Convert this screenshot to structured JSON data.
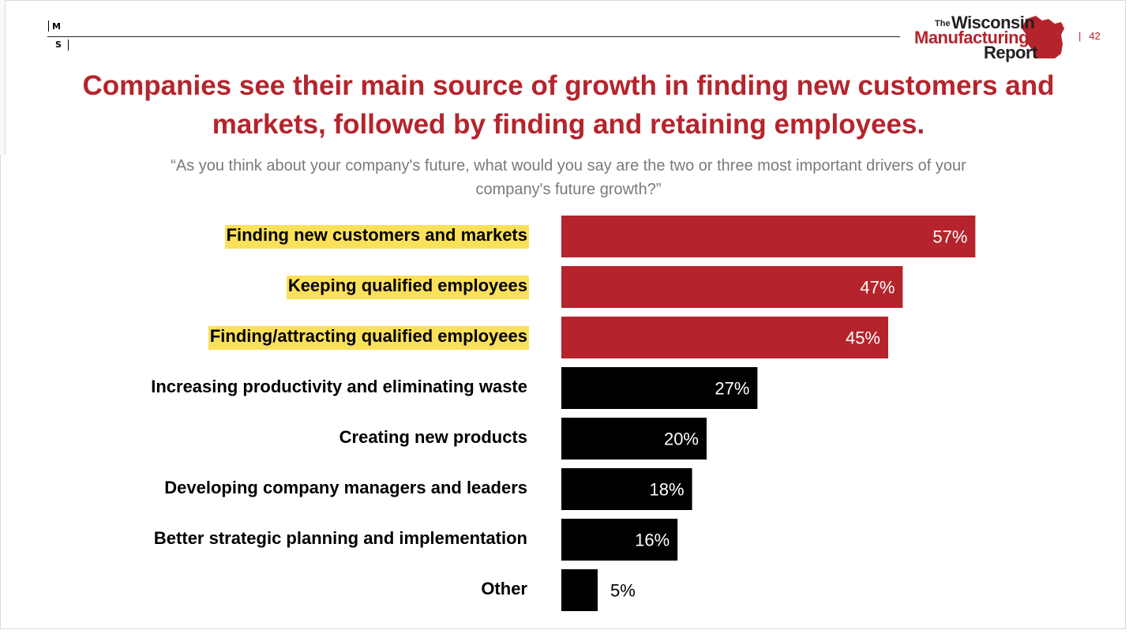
{
  "header": {
    "logo_letters": [
      "M",
      "S"
    ],
    "brand": {
      "the": "The",
      "line1": "Wisconsin",
      "line2": "Manufacturing",
      "line3": "Report"
    },
    "page_separator": "|",
    "page_number": "42"
  },
  "colors": {
    "accent": "#b5242c",
    "black": "#000000",
    "highlight": "#fbe05a"
  },
  "chart_data": {
    "type": "bar",
    "orientation": "horizontal",
    "title": "Companies see their main source of growth in finding new customers and markets, followed by finding and retaining employees.",
    "subtitle": "“As you think about your company's future, what would you say are the two or three most important drivers of your company's future growth?”",
    "categories": [
      "Finding new customers and markets",
      "Keeping qualified employees",
      "Finding/attracting qualified employees",
      "Increasing productivity and eliminating waste",
      "Creating new products",
      "Developing company managers and leaders",
      "Better strategic planning and implementation",
      "Other"
    ],
    "values": [
      57,
      47,
      45,
      27,
      20,
      18,
      16,
      5
    ],
    "value_labels": [
      "57%",
      "47%",
      "45%",
      "27%",
      "20%",
      "18%",
      "16%",
      "5%"
    ],
    "highlighted": [
      true,
      true,
      true,
      false,
      false,
      false,
      false,
      false
    ],
    "bar_colors": [
      "#b5242c",
      "#b5242c",
      "#b5242c",
      "#000000",
      "#000000",
      "#000000",
      "#000000",
      "#000000"
    ],
    "unit": "%",
    "xlim": [
      0,
      100
    ],
    "grid": false,
    "legend": "none"
  }
}
